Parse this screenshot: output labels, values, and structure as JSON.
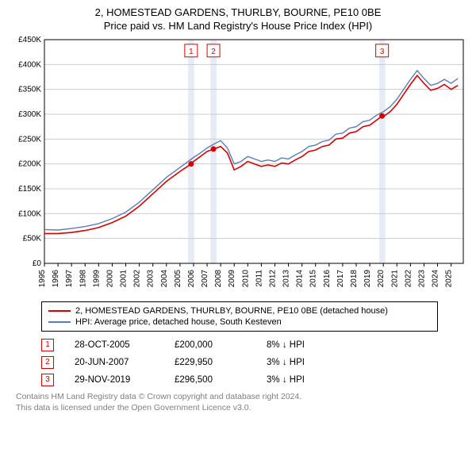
{
  "title_line1": "2, HOMESTEAD GARDENS, THURLBY, BOURNE, PE10 0BE",
  "title_line2": "Price paid vs. HM Land Registry's House Price Index (HPI)",
  "bg_color": "#ffffff",
  "plot_bg": "#ffffff",
  "axis_color": "#000000",
  "grid_color": "#cccccc",
  "band_color": "#e6ecf5",
  "text_color": "#000000",
  "xlim": [
    1995,
    2025.9
  ],
  "ylim": [
    0,
    450000
  ],
  "y_ticks": [
    0,
    50000,
    100000,
    150000,
    200000,
    250000,
    300000,
    350000,
    400000,
    450000
  ],
  "y_tick_labels": [
    "£0",
    "£50K",
    "£100K",
    "£150K",
    "£200K",
    "£250K",
    "£300K",
    "£350K",
    "£400K",
    "£450K"
  ],
  "x_ticks": [
    1995,
    1996,
    1997,
    1998,
    1999,
    2000,
    2001,
    2002,
    2003,
    2004,
    2005,
    2006,
    2007,
    2008,
    2009,
    2010,
    2011,
    2012,
    2013,
    2014,
    2015,
    2016,
    2017,
    2018,
    2019,
    2020,
    2021,
    2022,
    2023,
    2024,
    2025
  ],
  "x_tick_labels": [
    "1995",
    "1996",
    "1997",
    "1998",
    "1999",
    "2000",
    "2001",
    "2002",
    "2003",
    "2004",
    "2005",
    "2006",
    "2007",
    "2008",
    "2009",
    "2010",
    "2011",
    "2012",
    "2013",
    "2014",
    "2015",
    "2016",
    "2017",
    "2018",
    "2019",
    "2020",
    "2021",
    "2022",
    "2023",
    "2024",
    "2025"
  ],
  "axis_font_size": 10,
  "series": {
    "property": {
      "label": "2, HOMESTEAD GARDENS, THURLBY, BOURNE, PE10 0BE (detached house)",
      "color": "#d40000",
      "width": 1.6,
      "x": [
        1995,
        1996,
        1997,
        1998,
        1999,
        2000,
        2001,
        2002,
        2003,
        2004,
        2005,
        2005.82,
        2006,
        2006.5,
        2007,
        2007.47,
        2008,
        2008.5,
        2009,
        2009.5,
        2010,
        2010.5,
        2011,
        2011.5,
        2012,
        2012.5,
        2013,
        2013.5,
        2014,
        2014.5,
        2015,
        2015.5,
        2016,
        2016.5,
        2017,
        2017.5,
        2018,
        2018.5,
        2019,
        2019.5,
        2019.91,
        2020,
        2020.5,
        2021,
        2021.5,
        2022,
        2022.5,
        2023,
        2023.5,
        2024,
        2024.5,
        2025,
        2025.5
      ],
      "y": [
        60000,
        60000,
        62000,
        66000,
        72000,
        82000,
        95000,
        115000,
        140000,
        165000,
        185000,
        200000,
        205000,
        215000,
        225000,
        229950,
        235000,
        222000,
        188000,
        195000,
        205000,
        200000,
        195000,
        198000,
        195000,
        202000,
        200000,
        208000,
        215000,
        225000,
        228000,
        235000,
        238000,
        250000,
        252000,
        262000,
        265000,
        275000,
        278000,
        288000,
        296500,
        295000,
        305000,
        320000,
        340000,
        360000,
        378000,
        362000,
        348000,
        352000,
        360000,
        350000,
        358000
      ]
    },
    "hpi": {
      "label": "HPI: Average price, detached house, South Kesteven",
      "color": "#5b7fb4",
      "width": 1.4,
      "x": [
        1995,
        1996,
        1997,
        1998,
        1999,
        2000,
        2001,
        2002,
        2003,
        2004,
        2005,
        2006,
        2006.5,
        2007,
        2007.5,
        2008,
        2008.5,
        2009,
        2009.5,
        2010,
        2010.5,
        2011,
        2011.5,
        2012,
        2012.5,
        2013,
        2013.5,
        2014,
        2014.5,
        2015,
        2015.5,
        2016,
        2016.5,
        2017,
        2017.5,
        2018,
        2018.5,
        2019,
        2019.5,
        2020,
        2020.5,
        2021,
        2021.5,
        2022,
        2022.5,
        2023,
        2023.5,
        2024,
        2024.5,
        2025,
        2025.5
      ],
      "y": [
        68000,
        67000,
        70000,
        74000,
        80000,
        90000,
        103000,
        123000,
        148000,
        173000,
        193000,
        213000,
        222000,
        232000,
        240000,
        247000,
        232000,
        200000,
        205000,
        215000,
        210000,
        205000,
        208000,
        205000,
        212000,
        210000,
        218000,
        225000,
        235000,
        238000,
        245000,
        248000,
        260000,
        262000,
        272000,
        275000,
        285000,
        288000,
        298000,
        305000,
        315000,
        330000,
        350000,
        370000,
        388000,
        372000,
        358000,
        362000,
        370000,
        362000,
        372000
      ]
    }
  },
  "sale_markers": [
    {
      "n": "1",
      "x": 2005.82,
      "y": 200000,
      "band_x0": 2005.6,
      "band_x1": 2006.05,
      "box_y": 428000
    },
    {
      "n": "2",
      "x": 2007.47,
      "y": 229950,
      "band_x0": 2007.25,
      "band_x1": 2007.7,
      "box_y": 428000
    },
    {
      "n": "3",
      "x": 2019.91,
      "y": 296500,
      "band_x0": 2019.7,
      "band_x1": 2020.15,
      "box_y": 428000
    }
  ],
  "marker_box_color": "#d40000",
  "marker_fill": "#d40000",
  "legend": {
    "property_label": "2, HOMESTEAD GARDENS, THURLBY, BOURNE, PE10 0BE (detached house)",
    "hpi_label": "HPI: Average price, detached house, South Kesteven"
  },
  "sales_rows": [
    {
      "n": "1",
      "date": "28-OCT-2005",
      "price": "£200,000",
      "pct": "8% ↓ HPI"
    },
    {
      "n": "2",
      "date": "20-JUN-2007",
      "price": "£229,950",
      "pct": "3% ↓ HPI"
    },
    {
      "n": "3",
      "date": "29-NOV-2019",
      "price": "£296,500",
      "pct": "3% ↓ HPI"
    }
  ],
  "footnote_line1": "Contains HM Land Registry data © Crown copyright and database right 2024.",
  "footnote_line2": "This data is licensed under the Open Government Licence v3.0."
}
